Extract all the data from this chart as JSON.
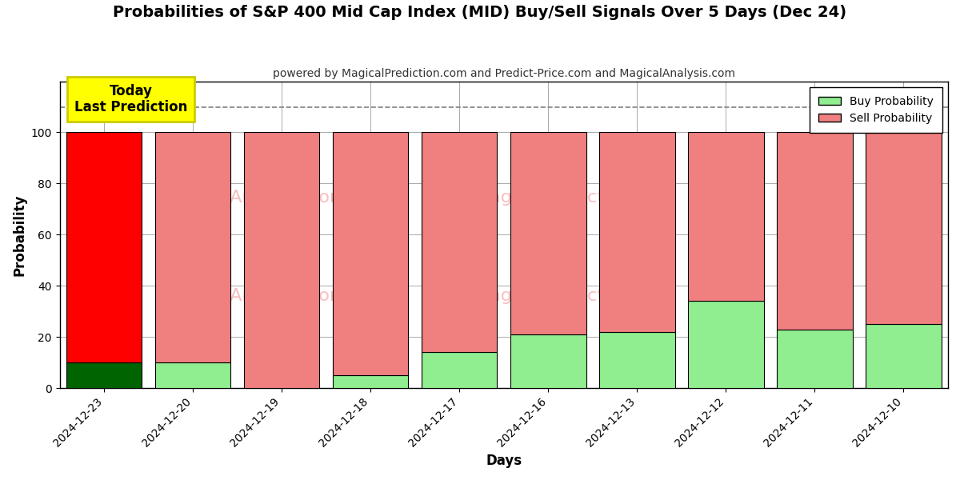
{
  "title": "Probabilities of S&P 400 Mid Cap Index (MID) Buy/Sell Signals Over 5 Days (Dec 24)",
  "subtitle": "powered by MagicalPrediction.com and Predict-Price.com and MagicalAnalysis.com",
  "xlabel": "Days",
  "ylabel": "Probability",
  "categories": [
    "2024-12-23",
    "2024-12-20",
    "2024-12-19",
    "2024-12-18",
    "2024-12-17",
    "2024-12-16",
    "2024-12-13",
    "2024-12-12",
    "2024-12-11",
    "2024-12-10"
  ],
  "buy_values": [
    10,
    10,
    0,
    5,
    14,
    21,
    22,
    34,
    23,
    25
  ],
  "sell_values": [
    90,
    90,
    100,
    95,
    86,
    79,
    78,
    66,
    77,
    75
  ],
  "today_bar_buy_color": "#006400",
  "today_bar_sell_color": "#ff0000",
  "other_bar_buy_color": "#90EE90",
  "other_bar_sell_color": "#F08080",
  "today_annotation_text": "Today\nLast Prediction",
  "today_annotation_bg": "#ffff00",
  "today_annotation_border": "#cccc00",
  "legend_buy_label": "Buy Probability",
  "legend_sell_label": "Sell Probability",
  "ylim": [
    0,
    120
  ],
  "yticks": [
    0,
    20,
    40,
    60,
    80,
    100
  ],
  "dashed_line_y": 110,
  "background_color": "#ffffff",
  "grid_color": "#aaaaaa",
  "bar_edge_color": "#000000",
  "bar_edge_linewidth": 0.8,
  "bar_width": 0.85
}
